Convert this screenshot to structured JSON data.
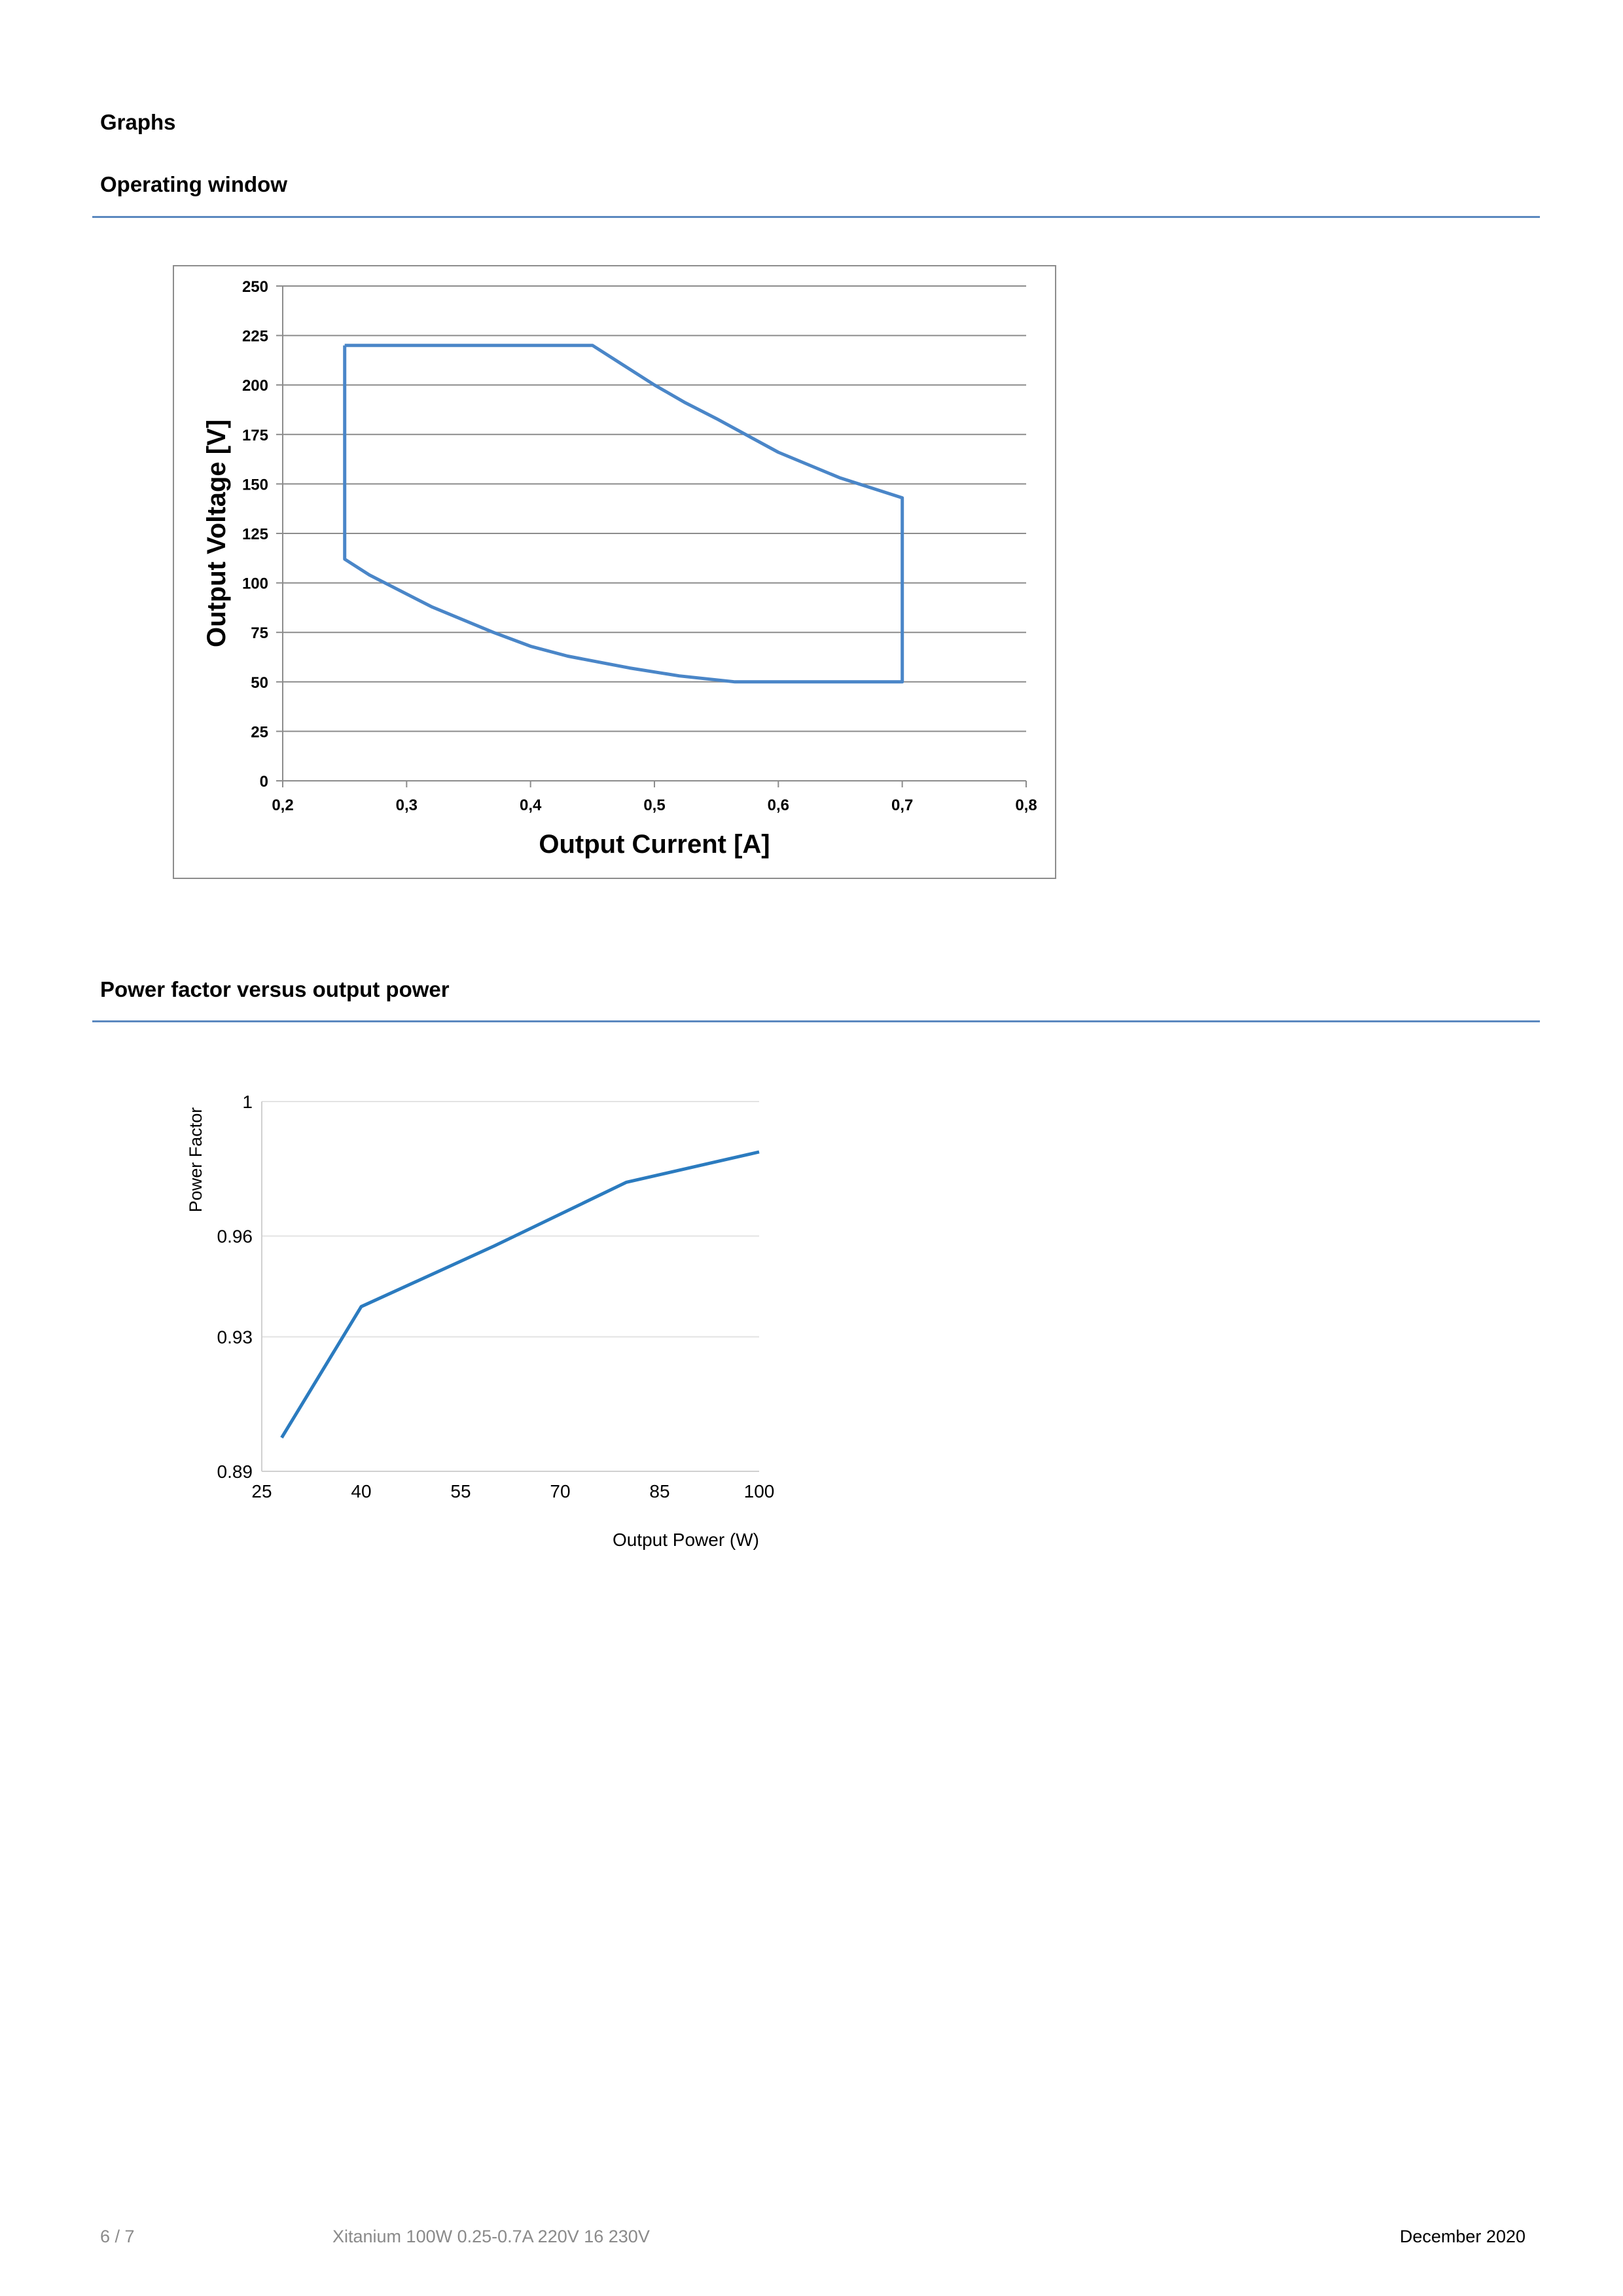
{
  "page": {
    "section_title": "Graphs",
    "section1": {
      "title": "Operating window"
    },
    "section2": {
      "title": "Power factor versus output power"
    }
  },
  "footer": {
    "page_number": "6 / 7",
    "product_name": "Xitanium 100W 0.25-0.7A 220V 16 230V",
    "date": "December 2020"
  },
  "colors": {
    "accent": "#5b88bf",
    "line": "#4a86c8",
    "pf_line": "#2b7bbf"
  },
  "chart_data": [
    {
      "type": "line",
      "xlabel": "Output Current [A]",
      "ylabel": "Output Voltage [V]",
      "xlim": [
        0.2,
        0.8
      ],
      "ylim": [
        0,
        250
      ],
      "x_ticks": [
        "0,2",
        "0,3",
        "0,4",
        "0,5",
        "0,6",
        "0,7",
        "0,8"
      ],
      "y_ticks": [
        "0",
        "25",
        "50",
        "75",
        "100",
        "125",
        "150",
        "175",
        "200",
        "225",
        "250"
      ],
      "grid": true,
      "series": [
        {
          "x": [
            0.25,
            0.45,
            0.475,
            0.5,
            0.525,
            0.55,
            0.6,
            0.65,
            0.7,
            0.7,
            0.565,
            0.52,
            0.48,
            0.43,
            0.4,
            0.37,
            0.32,
            0.27,
            0.25,
            0.25
          ],
          "y": [
            220,
            220,
            210,
            200,
            191,
            183,
            166,
            153,
            143,
            50,
            50,
            53,
            57,
            63,
            68,
            75,
            88,
            104,
            112,
            220
          ]
        }
      ]
    },
    {
      "type": "line",
      "xlabel": "Output Power (W)",
      "ylabel": "Power Factor",
      "xlim": [
        25,
        100
      ],
      "ylim": [
        0.89,
        1
      ],
      "x_ticks": [
        "25",
        "40",
        "55",
        "70",
        "85",
        "100"
      ],
      "y_ticks": [
        "0.89",
        "0.93",
        "0.96",
        "1"
      ],
      "grid": true,
      "series": [
        {
          "x": [
            28,
            40,
            60,
            80,
            100
          ],
          "y": [
            0.9,
            0.939,
            0.957,
            0.976,
            0.985
          ]
        }
      ]
    }
  ]
}
